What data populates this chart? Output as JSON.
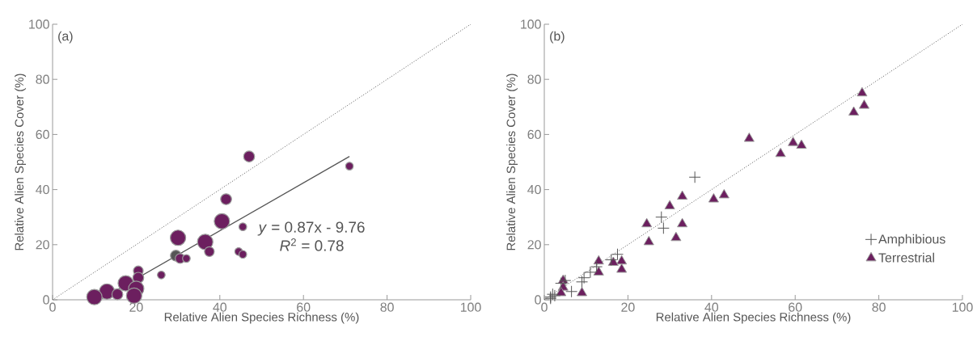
{
  "chart_data": [
    {
      "type": "bubble",
      "title": "(a)",
      "xlabel": "Relative Alien Species Richness (%)",
      "ylabel": "Relative Alien Species Cover (%)",
      "xlim": [
        0,
        100
      ],
      "ylim": [
        0,
        100
      ],
      "xticks": [
        0,
        20,
        40,
        60,
        80,
        100
      ],
      "yticks": [
        0,
        20,
        40,
        60,
        80,
        100
      ],
      "annotations": [
        "*y* = 0.87x - 9.76",
        "*R*$^{2}$ = 0.78"
      ],
      "series": [
        {
          "x": [
            71,
            47,
            41.5,
            40.5,
            45.5,
            36.5,
            37.5,
            44.5,
            45.5,
            30,
            29.5,
            30.5,
            32,
            26,
            20.5,
            20.5,
            17.5,
            20,
            13,
            10,
            15.5,
            19.5
          ],
          "values": [
            48.5,
            52,
            36.5,
            28.5,
            26.5,
            21,
            17.5,
            17.5,
            16.5,
            22.5,
            16,
            15,
            15,
            9,
            10.5,
            8,
            6,
            4,
            3,
            1,
            2,
            1.5
          ],
          "sizes": [
            0.25,
            0.5,
            0.5,
            1,
            0.25,
            1,
            0.4,
            0.25,
            0.25,
            1,
            0.5,
            0.4,
            0.25,
            0.25,
            0.4,
            0.5,
            1,
            1,
            1,
            1,
            0.5,
            1
          ],
          "colors": [
            "#6c1f5f",
            "#6c1f5f",
            "#6c1f5f",
            "#6c1f5f",
            "#6c1f5f",
            "#6c1f5f",
            "#6c1f5f",
            "#6c1f5f",
            "#6c1f5f",
            "#6c1f5f",
            "#555555",
            "#6c1f5f",
            "#6c1f5f",
            "#6c1f5f",
            "#6c1f5f",
            "#6c1f5f",
            "#6c1f5f",
            "#6c1f5f",
            "#6c1f5f",
            "#6c1f5f",
            "#6c1f5f",
            "#6c1f5f"
          ]
        },
        {
          "type": "line",
          "color": "#555555",
          "line_style": "solid",
          "x": [
            11.22,
            71
          ],
          "values": [
            0,
            52
          ]
        },
        {
          "type": "line",
          "color": "#555555",
          "line_style": "dotted",
          "x": [
            0,
            100
          ],
          "values": [
            0,
            100
          ]
        }
      ]
    },
    {
      "type": "scatter",
      "title": "(b)",
      "xlabel": "Relative Alien Species Richness (%)",
      "ylabel": "Relative Alien Species Cover (%)",
      "xlim": [
        0,
        100
      ],
      "ylim": [
        0,
        100
      ],
      "xticks": [
        0,
        20,
        40,
        60,
        80,
        100
      ],
      "yticks": [
        0,
        20,
        40,
        60,
        80,
        100
      ],
      "legend": "bottom right",
      "series": [
        {
          "name": "Amphibious",
          "color": "#555555",
          "marker": "cross",
          "x": [
            36,
            28,
            28.5,
            17.5,
            16,
            12.5,
            11,
            9.5,
            9,
            6.5,
            5,
            4,
            2,
            1.5,
            2.5,
            1.5
          ],
          "values": [
            44.5,
            30,
            26,
            16.5,
            14.5,
            12,
            10,
            8,
            6.5,
            3,
            7,
            6,
            2,
            1,
            1.5,
            0.5
          ]
        },
        {
          "name": "Terrestrial",
          "color": "#6c1f5f",
          "marker": "triangle",
          "x": [
            76,
            76.5,
            74,
            59.5,
            61.5,
            56.5,
            49,
            43,
            40.5,
            33,
            30,
            33,
            31.5,
            24.5,
            25,
            18.5,
            18.5,
            16.5,
            13,
            13,
            9,
            4.5,
            4.5,
            4
          ],
          "values": [
            75,
            70.5,
            68,
            57,
            56,
            53,
            58.5,
            38,
            36.5,
            37.5,
            34,
            27.5,
            22.5,
            27.5,
            21,
            14,
            11,
            13.5,
            14,
            10,
            2.5,
            7,
            4.5,
            2.5
          ]
        },
        {
          "type": "line",
          "color": "#555555",
          "line_style": "dotted",
          "x": [
            0,
            100
          ],
          "values": [
            0,
            100
          ]
        }
      ]
    }
  ]
}
